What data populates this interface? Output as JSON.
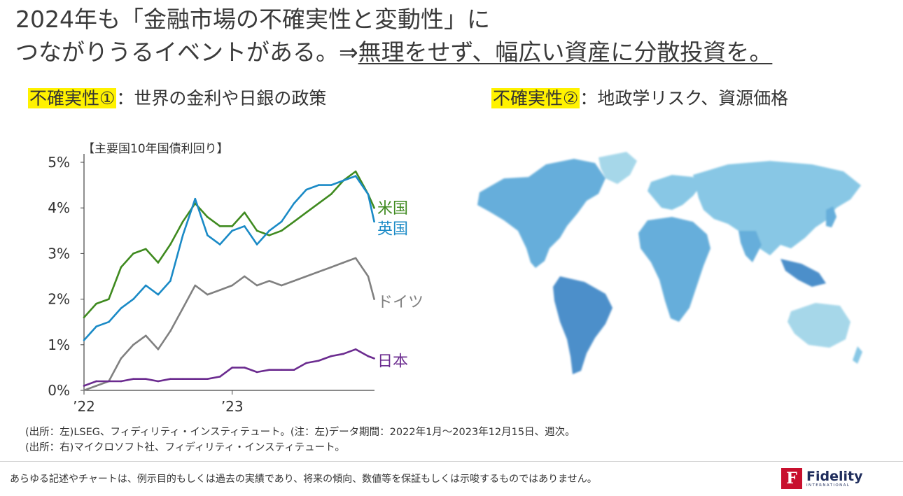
{
  "header": {
    "title_line1": "2024年も「金融市場の不確実性と変動性」に",
    "title_line2_plain": "つながりうるイベントがある。⇒",
    "title_line2_underlined": "無理をせず、幅広い資産に分散投資を。"
  },
  "left_panel": {
    "highlight": "不確実性①",
    "text": "：世界の金利や日銀の政策"
  },
  "right_panel": {
    "highlight": "不確実性②",
    "text": "：地政学リスク、資源価格"
  },
  "chart_data": {
    "type": "line",
    "title": "【主要国10年国債利回り】",
    "y_ticks": [
      "0%",
      "1%",
      "2%",
      "3%",
      "4%",
      "5%"
    ],
    "x_ticks": [
      {
        "label": "’22",
        "x": 2022.0
      },
      {
        "label": "’23",
        "x": 2023.0
      }
    ],
    "ylim": [
      0,
      5
    ],
    "xlim": [
      2022.0,
      2023.96
    ],
    "x": [
      2022.0,
      2022.083,
      2022.167,
      2022.25,
      2022.333,
      2022.417,
      2022.5,
      2022.583,
      2022.667,
      2022.75,
      2022.833,
      2022.917,
      2023.0,
      2023.083,
      2023.167,
      2023.25,
      2023.333,
      2023.417,
      2023.5,
      2023.583,
      2023.667,
      2023.75,
      2023.833,
      2023.917,
      2023.958
    ],
    "series": [
      {
        "name": "米国",
        "color": "#3f8a1f",
        "values": [
          1.6,
          1.9,
          2.0,
          2.7,
          3.0,
          3.1,
          2.8,
          3.2,
          3.7,
          4.1,
          3.8,
          3.6,
          3.6,
          3.9,
          3.5,
          3.4,
          3.5,
          3.7,
          3.9,
          4.1,
          4.3,
          4.6,
          4.8,
          4.3,
          4.0
        ]
      },
      {
        "name": "英国",
        "color": "#1a8ac6",
        "values": [
          1.1,
          1.4,
          1.5,
          1.8,
          2.0,
          2.3,
          2.1,
          2.4,
          3.4,
          4.2,
          3.4,
          3.2,
          3.5,
          3.6,
          3.2,
          3.5,
          3.7,
          4.1,
          4.4,
          4.5,
          4.5,
          4.6,
          4.7,
          4.3,
          3.7
        ]
      },
      {
        "name": "ドイツ",
        "color": "#808080",
        "values": [
          0.0,
          0.1,
          0.2,
          0.7,
          1.0,
          1.2,
          0.9,
          1.3,
          1.8,
          2.3,
          2.1,
          2.2,
          2.3,
          2.5,
          2.3,
          2.4,
          2.3,
          2.4,
          2.5,
          2.6,
          2.7,
          2.8,
          2.9,
          2.5,
          2.0
        ]
      },
      {
        "name": "日本",
        "color": "#6b2b8f",
        "values": [
          0.1,
          0.2,
          0.2,
          0.2,
          0.25,
          0.25,
          0.2,
          0.25,
          0.25,
          0.25,
          0.25,
          0.3,
          0.5,
          0.5,
          0.4,
          0.45,
          0.45,
          0.45,
          0.6,
          0.65,
          0.75,
          0.8,
          0.9,
          0.75,
          0.7
        ]
      }
    ]
  },
  "map": {
    "colors": [
      "#5aa8d8",
      "#7ec3e3",
      "#9fd4e8",
      "#3d86c6"
    ]
  },
  "footnotes": {
    "line1": "(出所：左)LSEG、フィディリティ・インスティテュート。(注：左)データ期間：2022年1月～2023年12月15日、週次。",
    "line2": "(出所：右)マイクロソフト社、フィディリティ・インスティテュート。"
  },
  "disclaimer": "あらゆる記述やチャートは、例示目的もしくは過去の実績であり、将来の傾向、数値等を保証もしくは示唆するものではありません。",
  "logo": {
    "mark": "F",
    "name": "Fidelity",
    "sub": "INTERNATIONAL",
    "color": "#c8102e"
  }
}
